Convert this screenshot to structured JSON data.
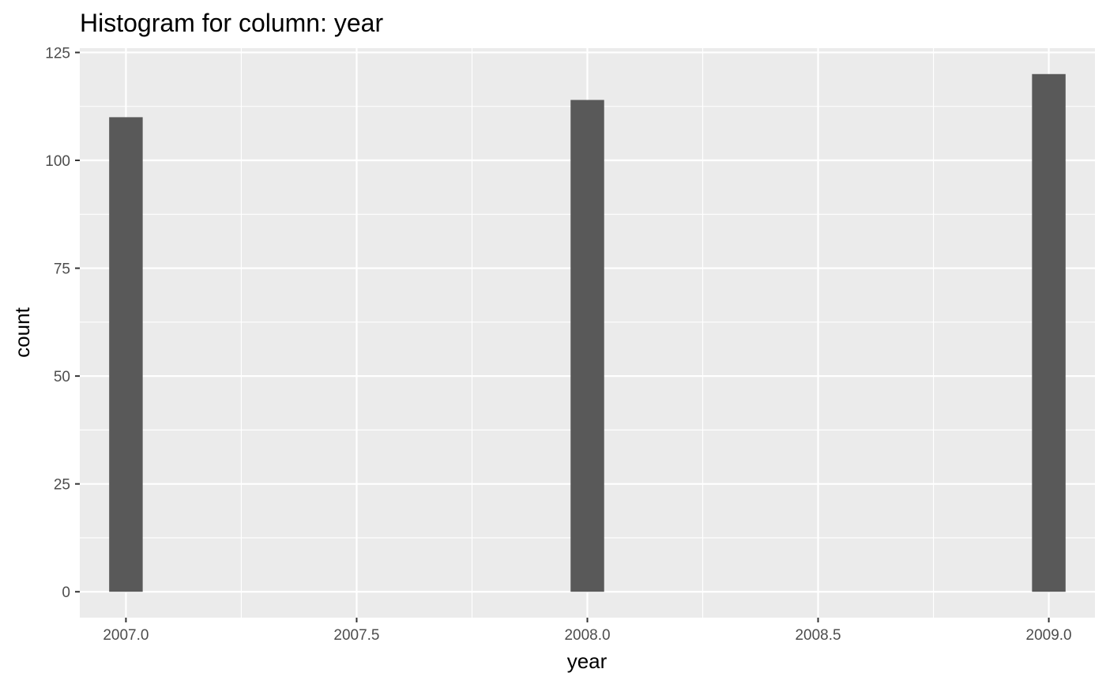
{
  "chart_data": {
    "type": "bar",
    "title": "Histogram for column: year",
    "xlabel": "year",
    "ylabel": "count",
    "x": [
      2007.0,
      2008.0,
      2009.0
    ],
    "values": [
      110,
      114,
      120
    ],
    "bin_width": 0.0727,
    "xlim": [
      2006.9,
      2009.1
    ],
    "ylim": [
      -6,
      126
    ],
    "x_ticks": [
      2007.0,
      2007.5,
      2008.0,
      2008.5,
      2009.0
    ],
    "x_tick_labels": [
      "2007.0",
      "2007.5",
      "2008.0",
      "2008.5",
      "2009.0"
    ],
    "y_ticks": [
      0,
      25,
      50,
      75,
      100,
      125
    ],
    "y_tick_labels": [
      "0",
      "25",
      "50",
      "75",
      "100",
      "125"
    ],
    "grid": true,
    "colors": {
      "bar": "#595959",
      "panel": "#ebebeb",
      "grid": "#ffffff"
    }
  }
}
